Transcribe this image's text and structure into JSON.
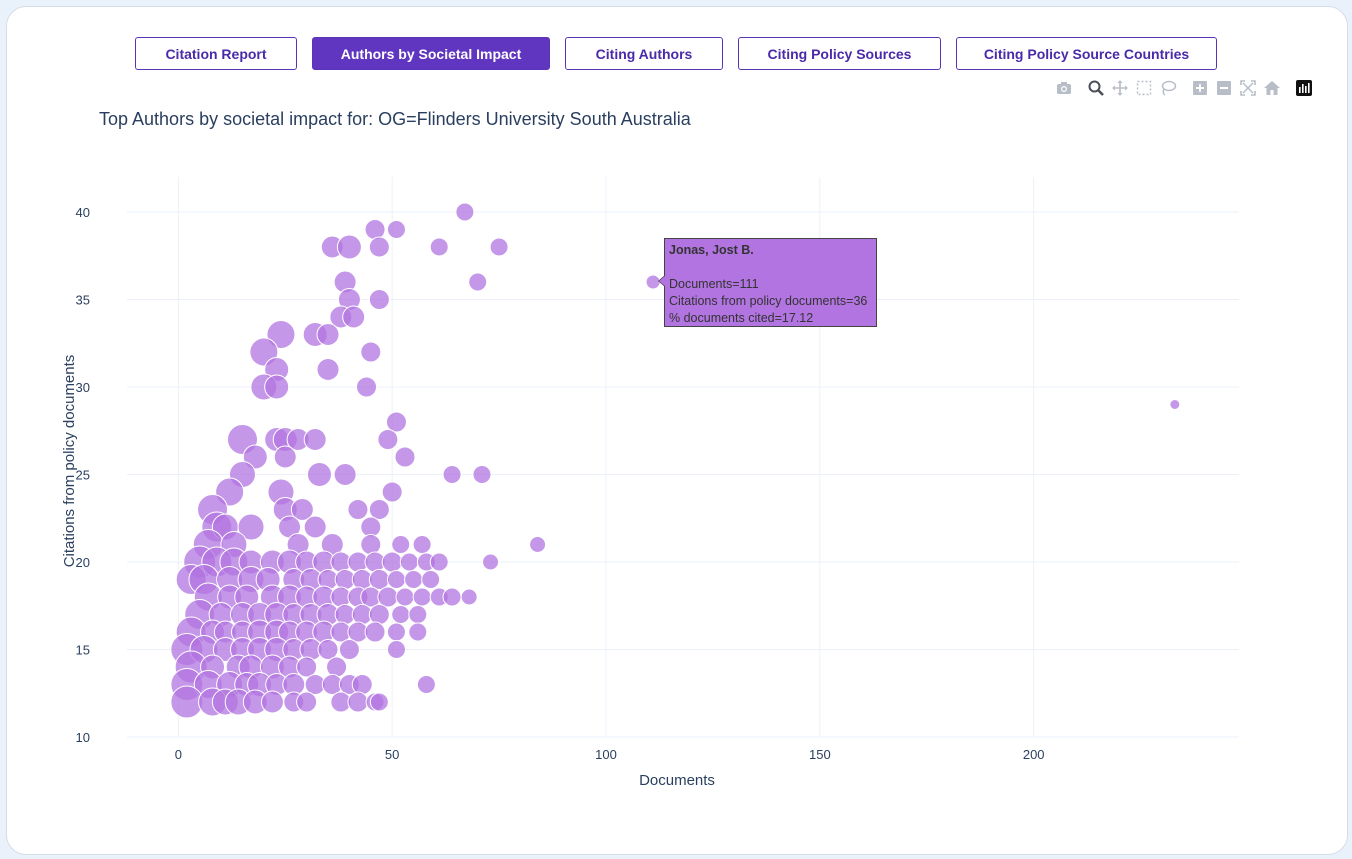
{
  "tabs": [
    {
      "label": "Citation Report",
      "active": false
    },
    {
      "label": "Authors by Societal Impact",
      "active": true
    },
    {
      "label": "Citing Authors",
      "active": false
    },
    {
      "label": "Citing Policy Sources",
      "active": false
    },
    {
      "label": "Citing Policy Source Countries",
      "active": false
    }
  ],
  "modebar_icons": [
    "camera-icon",
    "zoom-icon",
    "pan-icon",
    "box-select-icon",
    "lasso-select-icon",
    "zoom-in-icon",
    "zoom-out-icon",
    "autoscale-icon",
    "reset-axes-icon",
    "plotly-logo-icon"
  ],
  "colors": {
    "accent": "#6035c0",
    "marker": "#b274e0",
    "marker_dark": "#a55ad6"
  },
  "tooltip": {
    "name": "Jonas, Jost B.",
    "line1": "Documents=111",
    "line2": "Citations from policy documents=36",
    "line3": "% documents cited=17.12"
  },
  "chart_data": {
    "type": "scatter",
    "title": "Top Authors by societal impact for: OG=Flinders University South Australia",
    "xlabel": "Documents",
    "ylabel": "Citations from policy documents",
    "xlim": [
      -12,
      248
    ],
    "ylim": [
      10,
      42
    ],
    "xticks": [
      0,
      50,
      100,
      150,
      200
    ],
    "yticks": [
      10,
      15,
      20,
      25,
      30,
      35,
      40
    ],
    "grid": true,
    "size_encodes": "% documents cited",
    "points": [
      [
        67,
        40,
        9
      ],
      [
        46,
        39,
        10
      ],
      [
        51,
        39,
        9
      ],
      [
        36,
        38,
        11
      ],
      [
        40,
        38,
        12
      ],
      [
        47,
        38,
        10
      ],
      [
        61,
        38,
        9
      ],
      [
        75,
        38,
        9
      ],
      [
        70,
        36,
        9
      ],
      [
        111,
        36,
        7
      ],
      [
        39,
        36,
        11
      ],
      [
        40,
        35,
        11
      ],
      [
        47,
        35,
        10
      ],
      [
        38,
        34,
        11
      ],
      [
        41,
        34,
        11
      ],
      [
        24,
        33,
        14
      ],
      [
        32,
        33,
        12
      ],
      [
        35,
        33,
        11
      ],
      [
        20,
        32,
        14
      ],
      [
        45,
        32,
        10
      ],
      [
        23,
        31,
        12
      ],
      [
        35,
        31,
        11
      ],
      [
        20,
        30,
        13
      ],
      [
        23,
        30,
        12
      ],
      [
        44,
        30,
        10
      ],
      [
        51,
        28,
        10
      ],
      [
        233,
        29,
        5
      ],
      [
        15,
        27,
        15
      ],
      [
        23,
        27,
        12
      ],
      [
        25,
        27,
        12
      ],
      [
        28,
        27,
        11
      ],
      [
        32,
        27,
        11
      ],
      [
        49,
        27,
        10
      ],
      [
        18,
        26,
        12
      ],
      [
        25,
        26,
        11
      ],
      [
        53,
        26,
        10
      ],
      [
        15,
        25,
        13
      ],
      [
        33,
        25,
        12
      ],
      [
        39,
        25,
        11
      ],
      [
        64,
        25,
        9
      ],
      [
        71,
        25,
        9
      ],
      [
        12,
        24,
        14
      ],
      [
        24,
        24,
        13
      ],
      [
        50,
        24,
        10
      ],
      [
        8,
        23,
        15
      ],
      [
        25,
        23,
        12
      ],
      [
        29,
        23,
        11
      ],
      [
        42,
        23,
        10
      ],
      [
        47,
        23,
        10
      ],
      [
        9,
        22,
        15
      ],
      [
        11,
        22,
        13
      ],
      [
        17,
        22,
        13
      ],
      [
        26,
        22,
        11
      ],
      [
        32,
        22,
        11
      ],
      [
        45,
        22,
        10
      ],
      [
        7,
        21,
        15
      ],
      [
        13,
        21,
        13
      ],
      [
        28,
        21,
        11
      ],
      [
        36,
        21,
        11
      ],
      [
        45,
        21,
        10
      ],
      [
        52,
        21,
        9
      ],
      [
        57,
        21,
        9
      ],
      [
        84,
        21,
        8
      ],
      [
        5,
        20,
        16
      ],
      [
        9,
        20,
        15
      ],
      [
        13,
        20,
        14
      ],
      [
        17,
        20,
        12
      ],
      [
        22,
        20,
        12
      ],
      [
        26,
        20,
        12
      ],
      [
        30,
        20,
        11
      ],
      [
        34,
        20,
        11
      ],
      [
        38,
        20,
        10
      ],
      [
        42,
        20,
        10
      ],
      [
        46,
        20,
        10
      ],
      [
        50,
        20,
        10
      ],
      [
        54,
        20,
        9
      ],
      [
        58,
        20,
        9
      ],
      [
        61,
        20,
        9
      ],
      [
        73,
        20,
        8
      ],
      [
        3,
        19,
        15
      ],
      [
        6,
        19,
        15
      ],
      [
        12,
        19,
        13
      ],
      [
        17,
        19,
        13
      ],
      [
        21,
        19,
        12
      ],
      [
        27,
        19,
        11
      ],
      [
        31,
        19,
        11
      ],
      [
        35,
        19,
        10
      ],
      [
        39,
        19,
        10
      ],
      [
        43,
        19,
        10
      ],
      [
        47,
        19,
        10
      ],
      [
        51,
        19,
        9
      ],
      [
        55,
        19,
        9
      ],
      [
        59,
        19,
        9
      ],
      [
        7,
        18,
        14
      ],
      [
        12,
        18,
        12
      ],
      [
        16,
        18,
        12
      ],
      [
        22,
        18,
        12
      ],
      [
        26,
        18,
        12
      ],
      [
        30,
        18,
        11
      ],
      [
        34,
        18,
        11
      ],
      [
        38,
        18,
        10
      ],
      [
        42,
        18,
        10
      ],
      [
        45,
        18,
        10
      ],
      [
        49,
        18,
        10
      ],
      [
        53,
        18,
        9
      ],
      [
        57,
        18,
        9
      ],
      [
        61,
        18,
        9
      ],
      [
        64,
        18,
        9
      ],
      [
        68,
        18,
        8
      ],
      [
        5,
        17,
        15
      ],
      [
        10,
        17,
        12
      ],
      [
        15,
        17,
        12
      ],
      [
        19,
        17,
        12
      ],
      [
        23,
        17,
        12
      ],
      [
        27,
        17,
        11
      ],
      [
        31,
        17,
        11
      ],
      [
        35,
        17,
        11
      ],
      [
        39,
        17,
        10
      ],
      [
        43,
        17,
        10
      ],
      [
        47,
        17,
        10
      ],
      [
        52,
        17,
        9
      ],
      [
        56,
        17,
        9
      ],
      [
        3,
        16,
        15
      ],
      [
        8,
        16,
        12
      ],
      [
        11,
        16,
        11
      ],
      [
        15,
        16,
        11
      ],
      [
        19,
        16,
        12
      ],
      [
        23,
        16,
        12
      ],
      [
        26,
        16,
        11
      ],
      [
        30,
        16,
        11
      ],
      [
        34,
        16,
        11
      ],
      [
        38,
        16,
        10
      ],
      [
        42,
        16,
        10
      ],
      [
        46,
        16,
        10
      ],
      [
        51,
        16,
        9
      ],
      [
        56,
        16,
        9
      ],
      [
        2,
        15,
        16
      ],
      [
        6,
        15,
        14
      ],
      [
        11,
        15,
        12
      ],
      [
        15,
        15,
        12
      ],
      [
        19,
        15,
        12
      ],
      [
        23,
        15,
        12
      ],
      [
        27,
        15,
        11
      ],
      [
        31,
        15,
        11
      ],
      [
        35,
        15,
        10
      ],
      [
        40,
        15,
        10
      ],
      [
        51,
        15,
        9
      ],
      [
        3,
        14,
        16
      ],
      [
        8,
        14,
        12
      ],
      [
        14,
        14,
        12
      ],
      [
        17,
        14,
        12
      ],
      [
        22,
        14,
        12
      ],
      [
        26,
        14,
        11
      ],
      [
        30,
        14,
        10
      ],
      [
        37,
        14,
        10
      ],
      [
        2,
        13,
        16
      ],
      [
        7,
        13,
        14
      ],
      [
        12,
        13,
        13
      ],
      [
        16,
        13,
        12
      ],
      [
        19,
        13,
        12
      ],
      [
        23,
        13,
        11
      ],
      [
        27,
        13,
        11
      ],
      [
        32,
        13,
        10
      ],
      [
        36,
        13,
        10
      ],
      [
        40,
        13,
        10
      ],
      [
        43,
        13,
        10
      ],
      [
        58,
        13,
        9
      ],
      [
        2,
        12,
        16
      ],
      [
        8,
        12,
        14
      ],
      [
        11,
        12,
        13
      ],
      [
        14,
        12,
        13
      ],
      [
        18,
        12,
        12
      ],
      [
        22,
        12,
        11
      ],
      [
        27,
        12,
        10
      ],
      [
        30,
        12,
        10
      ],
      [
        38,
        12,
        10
      ],
      [
        42,
        12,
        10
      ],
      [
        46,
        12,
        9
      ],
      [
        47,
        12,
        9
      ]
    ]
  }
}
